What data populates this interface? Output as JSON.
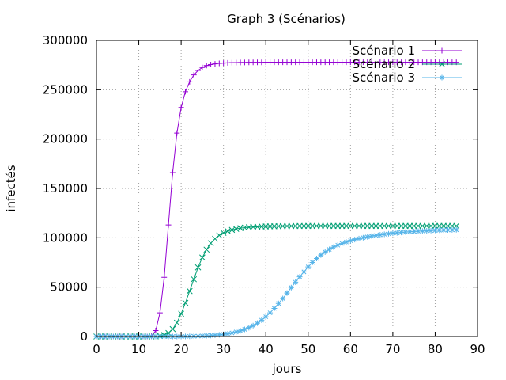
{
  "chart_data": {
    "type": "line",
    "title": "Graph 3 (Scénarios)",
    "xlabel": "jours",
    "ylabel": "infectés",
    "xlim": [
      0,
      90
    ],
    "ylim": [
      0,
      300000
    ],
    "x_ticks": [
      0,
      10,
      20,
      30,
      40,
      50,
      60,
      70,
      80,
      90
    ],
    "y_ticks": [
      0,
      50000,
      100000,
      150000,
      200000,
      250000,
      300000
    ],
    "x_tick_labels": [
      "0",
      "10",
      "20",
      "30",
      "40",
      "50",
      "60",
      "70",
      "80",
      "90"
    ],
    "y_tick_labels": [
      "0",
      "50000",
      "100000",
      "150000",
      "200000",
      "250000",
      "300000"
    ],
    "grid": true,
    "legend_position": "top-right",
    "series": [
      {
        "name": "Scénario 1",
        "color": "#9400d3",
        "marker": "plus",
        "x": [
          0,
          1,
          2,
          3,
          4,
          5,
          6,
          7,
          8,
          9,
          10,
          11,
          12,
          13,
          14,
          15,
          16,
          17,
          18,
          19,
          20,
          21,
          22,
          23,
          24,
          25,
          26,
          27,
          28,
          29,
          30,
          31,
          32,
          33,
          34,
          35,
          36,
          37,
          38,
          39,
          40,
          41,
          42,
          43,
          44,
          45,
          46,
          47,
          48,
          49,
          50,
          51,
          52,
          53,
          54,
          55,
          56,
          57,
          58,
          59,
          60,
          61,
          62,
          63,
          64,
          65,
          66,
          67,
          68,
          69,
          70,
          71,
          72,
          73,
          74,
          75,
          76,
          77,
          78,
          79,
          80,
          81,
          82,
          83,
          84,
          85
        ],
        "y": [
          0,
          0,
          0,
          0,
          0,
          0,
          0,
          0,
          0,
          0,
          0,
          0,
          0,
          500,
          6000,
          24000,
          60000,
          113000,
          166000,
          206000,
          232000,
          248000,
          258000,
          265000,
          269500,
          272500,
          274500,
          275500,
          276200,
          276700,
          277000,
          277200,
          277400,
          277500,
          277600,
          277650,
          277700,
          277700,
          277750,
          277750,
          277800,
          277800,
          277800,
          277800,
          277800,
          277800,
          277800,
          277800,
          277800,
          277800,
          277800,
          277800,
          277800,
          277800,
          277800,
          277800,
          277800,
          277800,
          277800,
          277800,
          277800,
          277800,
          277800,
          277800,
          277800,
          277800,
          277800,
          277800,
          277800,
          277800,
          277800,
          277800,
          277800,
          277800,
          277800,
          277800,
          277800,
          277800,
          277800,
          277800,
          277800,
          277800,
          277800,
          277800,
          277800,
          277800
        ]
      },
      {
        "name": "Scénario 2",
        "color": "#009e73",
        "marker": "cross",
        "x": [
          0,
          1,
          2,
          3,
          4,
          5,
          6,
          7,
          8,
          9,
          10,
          11,
          12,
          13,
          14,
          15,
          16,
          17,
          18,
          19,
          20,
          21,
          22,
          23,
          24,
          25,
          26,
          27,
          28,
          29,
          30,
          31,
          32,
          33,
          34,
          35,
          36,
          37,
          38,
          39,
          40,
          41,
          42,
          43,
          44,
          45,
          46,
          47,
          48,
          49,
          50,
          51,
          52,
          53,
          54,
          55,
          56,
          57,
          58,
          59,
          60,
          61,
          62,
          63,
          64,
          65,
          66,
          67,
          68,
          69,
          70,
          71,
          72,
          73,
          74,
          75,
          76,
          77,
          78,
          79,
          80,
          81,
          82,
          83,
          84,
          85
        ],
        "y": [
          0,
          0,
          0,
          0,
          0,
          0,
          0,
          0,
          0,
          0,
          0,
          0,
          0,
          0,
          100,
          500,
          1500,
          3500,
          7500,
          14000,
          23000,
          34000,
          46000,
          58000,
          70000,
          80000,
          88000,
          94500,
          99000,
          102500,
          105000,
          106800,
          108000,
          109000,
          109800,
          110300,
          110700,
          111000,
          111200,
          111400,
          111500,
          111600,
          111700,
          111750,
          111800,
          111850,
          111900,
          111900,
          111950,
          111950,
          112000,
          112000,
          112000,
          112000,
          112000,
          112000,
          112000,
          112000,
          112000,
          112000,
          112000,
          112000,
          112000,
          112000,
          112000,
          112000,
          112000,
          112000,
          112000,
          112000,
          112000,
          112000,
          112000,
          112000,
          112000,
          112000,
          112000,
          112000,
          112000,
          112000,
          112000,
          112000,
          112000,
          112000,
          112000,
          112000
        ]
      },
      {
        "name": "Scénario 3",
        "color": "#56b4e9",
        "marker": "star",
        "x": [
          0,
          1,
          2,
          3,
          4,
          5,
          6,
          7,
          8,
          9,
          10,
          11,
          12,
          13,
          14,
          15,
          16,
          17,
          18,
          19,
          20,
          21,
          22,
          23,
          24,
          25,
          26,
          27,
          28,
          29,
          30,
          31,
          32,
          33,
          34,
          35,
          36,
          37,
          38,
          39,
          40,
          41,
          42,
          43,
          44,
          45,
          46,
          47,
          48,
          49,
          50,
          51,
          52,
          53,
          54,
          55,
          56,
          57,
          58,
          59,
          60,
          61,
          62,
          63,
          64,
          65,
          66,
          67,
          68,
          69,
          70,
          71,
          72,
          73,
          74,
          75,
          76,
          77,
          78,
          79,
          80,
          81,
          82,
          83,
          84,
          85
        ],
        "y": [
          0,
          0,
          0,
          0,
          0,
          0,
          0,
          0,
          0,
          0,
          0,
          0,
          0,
          0,
          0,
          0,
          0,
          0,
          0,
          0,
          0,
          100,
          200,
          300,
          400,
          600,
          800,
          1000,
          1300,
          1700,
          2200,
          2800,
          3600,
          4600,
          5800,
          7200,
          8900,
          11000,
          13500,
          16500,
          20000,
          24000,
          28500,
          33500,
          38500,
          44000,
          49500,
          55000,
          60500,
          65500,
          70500,
          75000,
          79000,
          82500,
          85500,
          88200,
          90500,
          92500,
          94200,
          95700,
          97000,
          98200,
          99200,
          100100,
          100900,
          101700,
          102400,
          103000,
          103600,
          104100,
          104600,
          105000,
          105400,
          105800,
          106100,
          106400,
          106700,
          106900,
          107100,
          107300,
          107500,
          107700,
          107800,
          107900,
          108000,
          108100
        ]
      }
    ]
  }
}
